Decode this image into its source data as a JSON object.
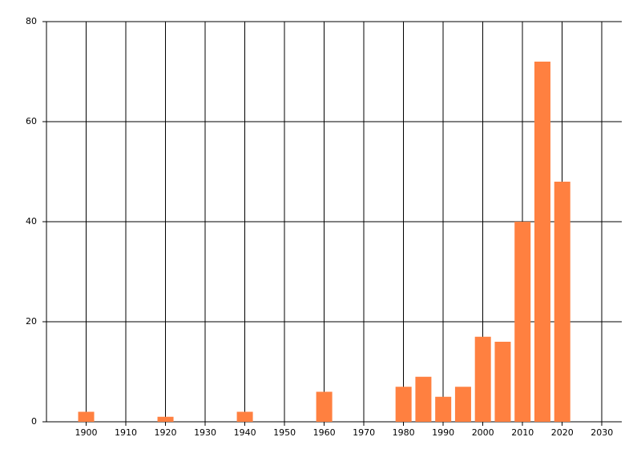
{
  "chart_data": {
    "type": "bar",
    "x": [
      1900,
      1920,
      1940,
      1960,
      1980,
      1985,
      1990,
      1995,
      2000,
      2005,
      2010,
      2015,
      2020
    ],
    "values": [
      2,
      1,
      2,
      6,
      7,
      9,
      5,
      7,
      17,
      16,
      40,
      72,
      48
    ],
    "color": "#ff8040",
    "xlim": [
      1890,
      2035
    ],
    "xticks": [
      1900,
      1910,
      1920,
      1930,
      1940,
      1950,
      1960,
      1970,
      1980,
      1990,
      2000,
      2010,
      2020,
      2030
    ],
    "ylim": [
      0,
      80
    ],
    "yticks": [
      0,
      20,
      40,
      60,
      80
    ],
    "grid": true
  }
}
